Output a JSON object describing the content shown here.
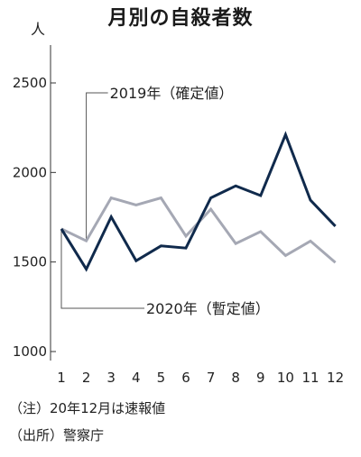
{
  "chart_data": {
    "type": "line",
    "title": "月別の自殺者数",
    "ylabel": "人",
    "xlabel": "",
    "categories": [
      "1",
      "2",
      "3",
      "4",
      "5",
      "6",
      "7",
      "8",
      "9",
      "10",
      "11",
      "12"
    ],
    "ylim": [
      1000,
      2650
    ],
    "yticks": [
      "1000",
      "1500",
      "2000",
      "2500"
    ],
    "grid": false,
    "series": [
      {
        "name": "2019年（確定値）",
        "color": "#a5a8b4",
        "values": [
          1685,
          1618,
          1858,
          1818,
          1858,
          1645,
          1795,
          1603,
          1670,
          1536,
          1617,
          1497
        ]
      },
      {
        "name": "2020年（暫定値）",
        "color": "#102a4c",
        "values": [
          1685,
          1460,
          1752,
          1507,
          1590,
          1578,
          1858,
          1925,
          1871,
          2211,
          1845,
          1700
        ]
      }
    ],
    "annotations": [
      "2019年（確定値）",
      "2020年（暫定値）"
    ]
  },
  "notes": [
    "（注）20年12月は速報値",
    "（出所）警察庁"
  ]
}
